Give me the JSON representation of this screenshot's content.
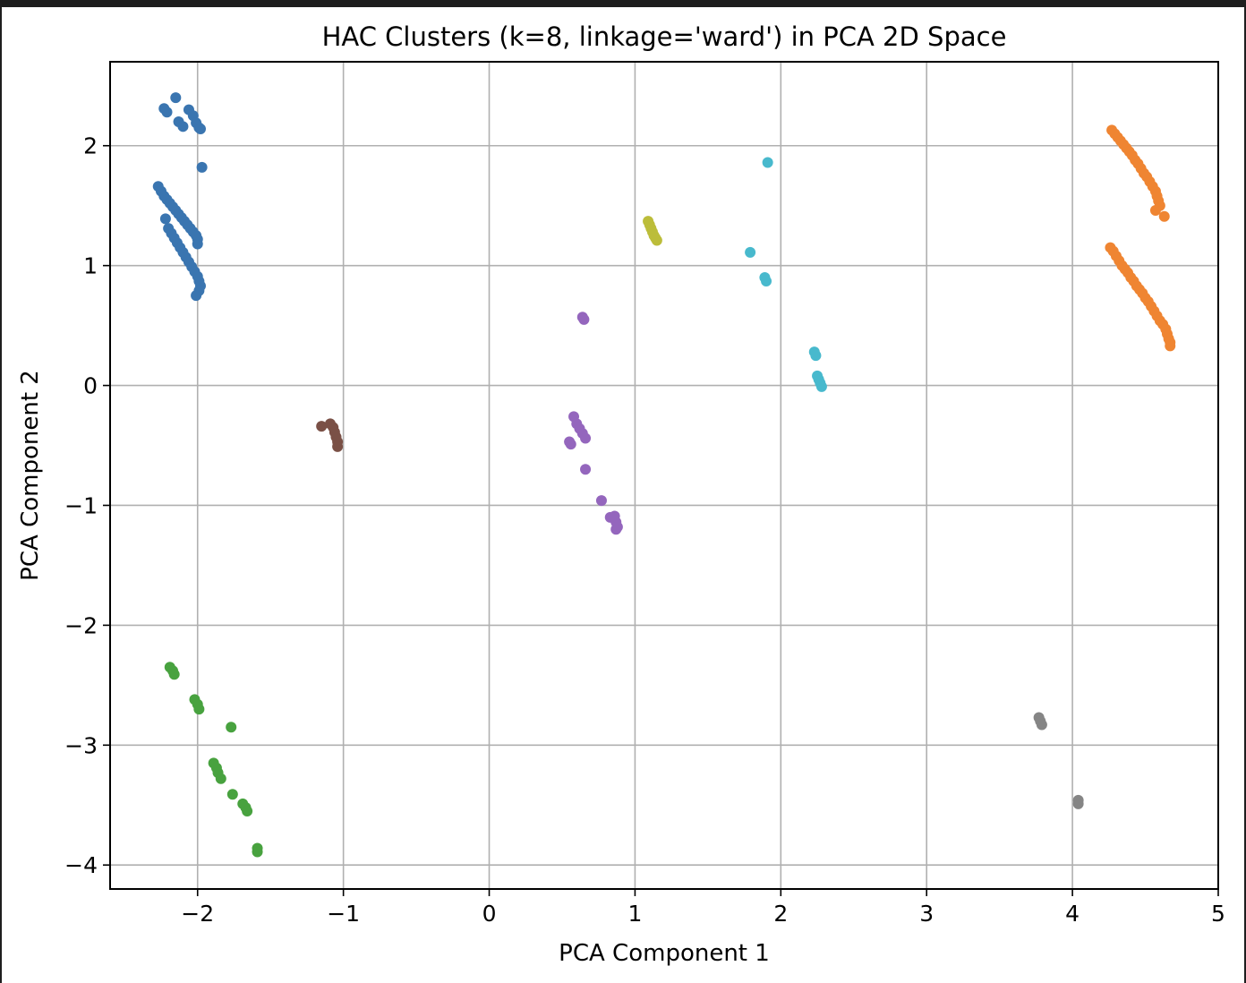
{
  "chart_data": {
    "type": "scatter",
    "title": "HAC Clusters (k=8, linkage='ward') in PCA 2D Space",
    "xlabel": "PCA Component 1",
    "ylabel": "PCA Component 2",
    "xlim": [
      -2.6,
      5.0
    ],
    "ylim": [
      -4.2,
      2.7
    ],
    "xticks": [
      -2,
      -1,
      0,
      1,
      2,
      3,
      4,
      5
    ],
    "yticks": [
      -4,
      -3,
      -2,
      -1,
      0,
      1,
      2
    ],
    "xtick_labels": [
      "−2",
      "−1",
      "0",
      "1",
      "2",
      "3",
      "4",
      "5"
    ],
    "ytick_labels": [
      "−4",
      "−3",
      "−2",
      "−1",
      "0",
      "1",
      "2"
    ],
    "grid": true,
    "series": [
      {
        "color": "#3a75b0",
        "points": [
          [
            -2.15,
            2.4
          ],
          [
            -2.23,
            2.31
          ],
          [
            -2.21,
            2.28
          ],
          [
            -2.13,
            2.2
          ],
          [
            -2.1,
            2.16
          ],
          [
            -2.06,
            2.3
          ],
          [
            -2.03,
            2.25
          ],
          [
            -2.01,
            2.19
          ],
          [
            -1.99,
            2.15
          ],
          [
            -1.98,
            2.14
          ],
          [
            -1.97,
            1.82
          ],
          [
            -2.27,
            1.66
          ],
          [
            -2.25,
            1.62
          ],
          [
            -2.23,
            1.58
          ],
          [
            -2.21,
            1.55
          ],
          [
            -2.19,
            1.52
          ],
          [
            -2.17,
            1.49
          ],
          [
            -2.15,
            1.46
          ],
          [
            -2.13,
            1.43
          ],
          [
            -2.11,
            1.4
          ],
          [
            -2.09,
            1.37
          ],
          [
            -2.07,
            1.34
          ],
          [
            -2.05,
            1.31
          ],
          [
            -2.03,
            1.28
          ],
          [
            -2.01,
            1.25
          ],
          [
            -2.0,
            1.22
          ],
          [
            -2.0,
            1.18
          ],
          [
            -2.22,
            1.39
          ],
          [
            -2.2,
            1.31
          ],
          [
            -2.18,
            1.27
          ],
          [
            -2.16,
            1.23
          ],
          [
            -2.14,
            1.19
          ],
          [
            -2.12,
            1.15
          ],
          [
            -2.1,
            1.11
          ],
          [
            -2.08,
            1.07
          ],
          [
            -2.06,
            1.03
          ],
          [
            -2.04,
            0.99
          ],
          [
            -2.02,
            0.95
          ],
          [
            -2.0,
            0.91
          ],
          [
            -1.99,
            0.87
          ],
          [
            -1.98,
            0.83
          ],
          [
            -1.99,
            0.79
          ],
          [
            -2.01,
            0.75
          ]
        ]
      },
      {
        "color": "#ef8532",
        "points": [
          [
            4.27,
            2.13
          ],
          [
            4.29,
            2.1
          ],
          [
            4.31,
            2.07
          ],
          [
            4.33,
            2.04
          ],
          [
            4.35,
            2.01
          ],
          [
            4.37,
            1.98
          ],
          [
            4.39,
            1.95
          ],
          [
            4.41,
            1.92
          ],
          [
            4.43,
            1.88
          ],
          [
            4.45,
            1.85
          ],
          [
            4.47,
            1.81
          ],
          [
            4.49,
            1.77
          ],
          [
            4.51,
            1.74
          ],
          [
            4.53,
            1.7
          ],
          [
            4.55,
            1.66
          ],
          [
            4.57,
            1.62
          ],
          [
            4.58,
            1.58
          ],
          [
            4.59,
            1.54
          ],
          [
            4.6,
            1.5
          ],
          [
            4.57,
            1.46
          ],
          [
            4.63,
            1.41
          ],
          [
            4.26,
            1.15
          ],
          [
            4.28,
            1.12
          ],
          [
            4.3,
            1.08
          ],
          [
            4.32,
            1.04
          ],
          [
            4.34,
            1.0
          ],
          [
            4.36,
            0.97
          ],
          [
            4.38,
            0.94
          ],
          [
            4.4,
            0.9
          ],
          [
            4.42,
            0.87
          ],
          [
            4.44,
            0.83
          ],
          [
            4.46,
            0.8
          ],
          [
            4.48,
            0.77
          ],
          [
            4.5,
            0.73
          ],
          [
            4.52,
            0.7
          ],
          [
            4.54,
            0.66
          ],
          [
            4.56,
            0.62
          ],
          [
            4.58,
            0.58
          ],
          [
            4.6,
            0.54
          ],
          [
            4.62,
            0.51
          ],
          [
            4.64,
            0.47
          ],
          [
            4.65,
            0.43
          ],
          [
            4.66,
            0.39
          ],
          [
            4.67,
            0.36
          ],
          [
            4.67,
            0.33
          ]
        ]
      },
      {
        "color": "#48a23f",
        "points": [
          [
            -2.19,
            -2.35
          ],
          [
            -2.17,
            -2.38
          ],
          [
            -2.16,
            -2.41
          ],
          [
            -2.02,
            -2.62
          ],
          [
            -2.0,
            -2.66
          ],
          [
            -1.99,
            -2.7
          ],
          [
            -1.77,
            -2.85
          ],
          [
            -1.89,
            -3.15
          ],
          [
            -1.87,
            -3.19
          ],
          [
            -1.86,
            -3.23
          ],
          [
            -1.84,
            -3.28
          ],
          [
            -1.76,
            -3.41
          ],
          [
            -1.69,
            -3.49
          ],
          [
            -1.67,
            -3.52
          ],
          [
            -1.66,
            -3.55
          ],
          [
            -1.59,
            -3.86
          ],
          [
            -1.59,
            -3.89
          ]
        ]
      },
      {
        "color": "#7a5046",
        "points": [
          [
            -1.15,
            -0.34
          ],
          [
            -1.09,
            -0.32
          ],
          [
            -1.07,
            -0.35
          ],
          [
            -1.06,
            -0.39
          ],
          [
            -1.05,
            -0.43
          ],
          [
            -1.04,
            -0.47
          ],
          [
            -1.04,
            -0.51
          ]
        ]
      },
      {
        "color": "#9466bd",
        "points": [
          [
            0.64,
            0.57
          ],
          [
            0.65,
            0.55
          ],
          [
            0.58,
            -0.26
          ],
          [
            0.6,
            -0.32
          ],
          [
            0.62,
            -0.36
          ],
          [
            0.64,
            -0.4
          ],
          [
            0.66,
            -0.44
          ],
          [
            0.55,
            -0.47
          ],
          [
            0.56,
            -0.49
          ],
          [
            0.66,
            -0.7
          ],
          [
            0.77,
            -0.96
          ],
          [
            0.83,
            -1.1
          ],
          [
            0.86,
            -1.09
          ],
          [
            0.87,
            -1.14
          ],
          [
            0.88,
            -1.18
          ],
          [
            0.87,
            -1.2
          ]
        ]
      },
      {
        "color": "#bcbd3a",
        "points": [
          [
            1.09,
            1.37
          ],
          [
            1.1,
            1.34
          ],
          [
            1.11,
            1.31
          ],
          [
            1.12,
            1.28
          ],
          [
            1.13,
            1.25
          ],
          [
            1.14,
            1.23
          ],
          [
            1.15,
            1.21
          ]
        ]
      },
      {
        "color": "#48b9cd",
        "points": [
          [
            1.91,
            1.86
          ],
          [
            1.79,
            1.11
          ],
          [
            1.89,
            0.9
          ],
          [
            1.9,
            0.87
          ],
          [
            2.23,
            0.28
          ],
          [
            2.24,
            0.25
          ],
          [
            2.25,
            0.08
          ],
          [
            2.26,
            0.05
          ],
          [
            2.27,
            0.02
          ],
          [
            2.28,
            -0.01
          ]
        ]
      },
      {
        "color": "#858585",
        "points": [
          [
            3.77,
            -2.77
          ],
          [
            3.78,
            -2.8
          ],
          [
            3.79,
            -2.83
          ],
          [
            4.04,
            -3.46
          ],
          [
            4.04,
            -3.49
          ]
        ]
      }
    ]
  }
}
